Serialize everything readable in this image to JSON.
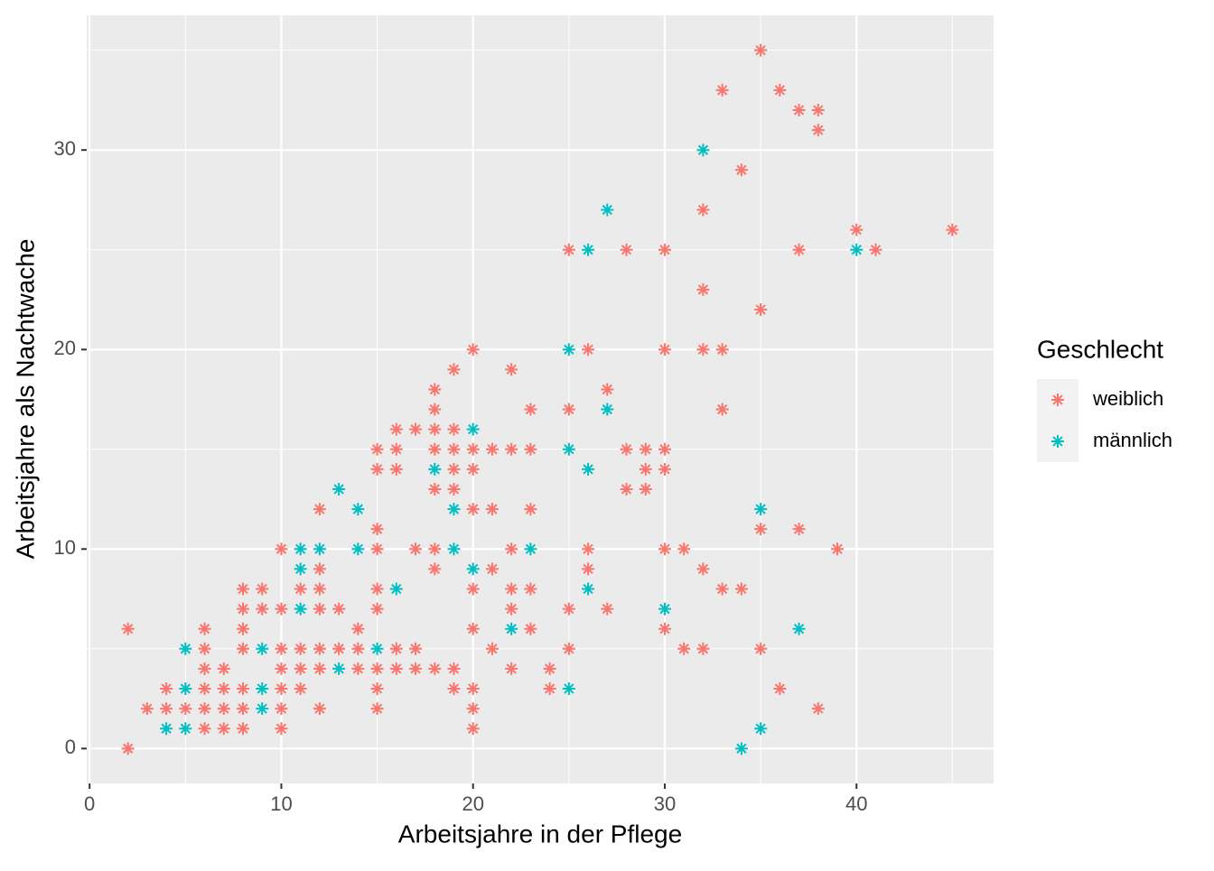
{
  "chart_data": {
    "type": "scatter",
    "xlabel": "Arbeitsjahre in der Pflege",
    "ylabel": "Arbeitsjahre als Nachtwache",
    "legend_title": "Geschlecht",
    "legend_position": "right",
    "marker": "asterisk",
    "grid": true,
    "xlim": [
      -0.15,
      47.15
    ],
    "ylim": [
      -1.75,
      36.75
    ],
    "xticks": [
      0,
      10,
      20,
      30,
      40
    ],
    "yticks": [
      0,
      10,
      20,
      30
    ],
    "xminor": [
      5,
      15,
      25,
      35,
      45
    ],
    "yminor": [
      5,
      15,
      25,
      35
    ],
    "series": [
      {
        "name": "weiblich",
        "color": "#f8766d",
        "x": [
          35,
          33,
          36,
          37,
          38,
          38,
          34,
          32,
          40,
          45,
          25,
          28,
          30,
          37,
          41,
          32,
          35,
          20,
          26,
          30,
          32,
          33,
          19,
          22,
          18,
          27,
          18,
          23,
          25,
          33,
          16,
          17,
          18,
          19,
          15,
          16,
          18,
          19,
          20,
          21,
          22,
          23,
          28,
          29,
          30,
          15,
          16,
          19,
          20,
          29,
          30,
          18,
          19,
          28,
          29,
          12,
          20,
          21,
          23,
          15,
          35,
          37,
          10,
          15,
          17,
          18,
          22,
          26,
          30,
          31,
          39,
          12,
          18,
          21,
          26,
          32,
          8,
          9,
          11,
          12,
          15,
          20,
          22,
          23,
          33,
          34,
          8,
          9,
          10,
          12,
          13,
          15,
          22,
          25,
          27,
          2,
          6,
          8,
          14,
          20,
          23,
          30,
          6,
          8,
          10,
          11,
          12,
          13,
          14,
          16,
          17,
          21,
          25,
          31,
          32,
          35,
          6,
          7,
          10,
          11,
          12,
          14,
          15,
          16,
          17,
          18,
          19,
          22,
          24,
          4,
          6,
          7,
          8,
          10,
          11,
          15,
          19,
          20,
          24,
          36,
          3,
          4,
          5,
          6,
          7,
          8,
          10,
          12,
          15,
          20,
          38,
          6,
          7,
          8,
          10,
          20,
          2
        ],
        "y": [
          35,
          33,
          33,
          32,
          32,
          31,
          29,
          27,
          26,
          26,
          25,
          25,
          25,
          25,
          25,
          23,
          22,
          20,
          20,
          20,
          20,
          20,
          19,
          19,
          18,
          18,
          17,
          17,
          17,
          17,
          16,
          16,
          16,
          16,
          15,
          15,
          15,
          15,
          15,
          15,
          15,
          15,
          15,
          15,
          15,
          14,
          14,
          14,
          14,
          14,
          14,
          13,
          13,
          13,
          13,
          12,
          12,
          12,
          12,
          11,
          11,
          11,
          10,
          10,
          10,
          10,
          10,
          10,
          10,
          10,
          10,
          9,
          9,
          9,
          9,
          9,
          8,
          8,
          8,
          8,
          8,
          8,
          8,
          8,
          8,
          8,
          7,
          7,
          7,
          7,
          7,
          7,
          7,
          7,
          7,
          6,
          6,
          6,
          6,
          6,
          6,
          6,
          5,
          5,
          5,
          5,
          5,
          5,
          5,
          5,
          5,
          5,
          5,
          5,
          5,
          5,
          4,
          4,
          4,
          4,
          4,
          4,
          4,
          4,
          4,
          4,
          4,
          4,
          4,
          3,
          3,
          3,
          3,
          3,
          3,
          3,
          3,
          3,
          3,
          3,
          2,
          2,
          2,
          2,
          2,
          2,
          2,
          2,
          2,
          2,
          2,
          1,
          1,
          1,
          1,
          1,
          0
        ]
      },
      {
        "name": "männlich",
        "color": "#00bfc4",
        "x": [
          32,
          27,
          26,
          40,
          25,
          27,
          20,
          25,
          18,
          26,
          13,
          14,
          19,
          35,
          11,
          12,
          14,
          19,
          23,
          11,
          20,
          16,
          26,
          11,
          30,
          22,
          37,
          5,
          9,
          15,
          13,
          5,
          9,
          25,
          9,
          4,
          5,
          35,
          34
        ],
        "y": [
          30,
          27,
          25,
          25,
          20,
          17,
          16,
          15,
          14,
          14,
          13,
          12,
          12,
          12,
          10,
          10,
          10,
          10,
          10,
          9,
          9,
          8,
          8,
          7,
          7,
          6,
          6,
          5,
          5,
          5,
          4,
          3,
          3,
          3,
          2,
          1,
          1,
          1,
          0
        ]
      }
    ]
  }
}
